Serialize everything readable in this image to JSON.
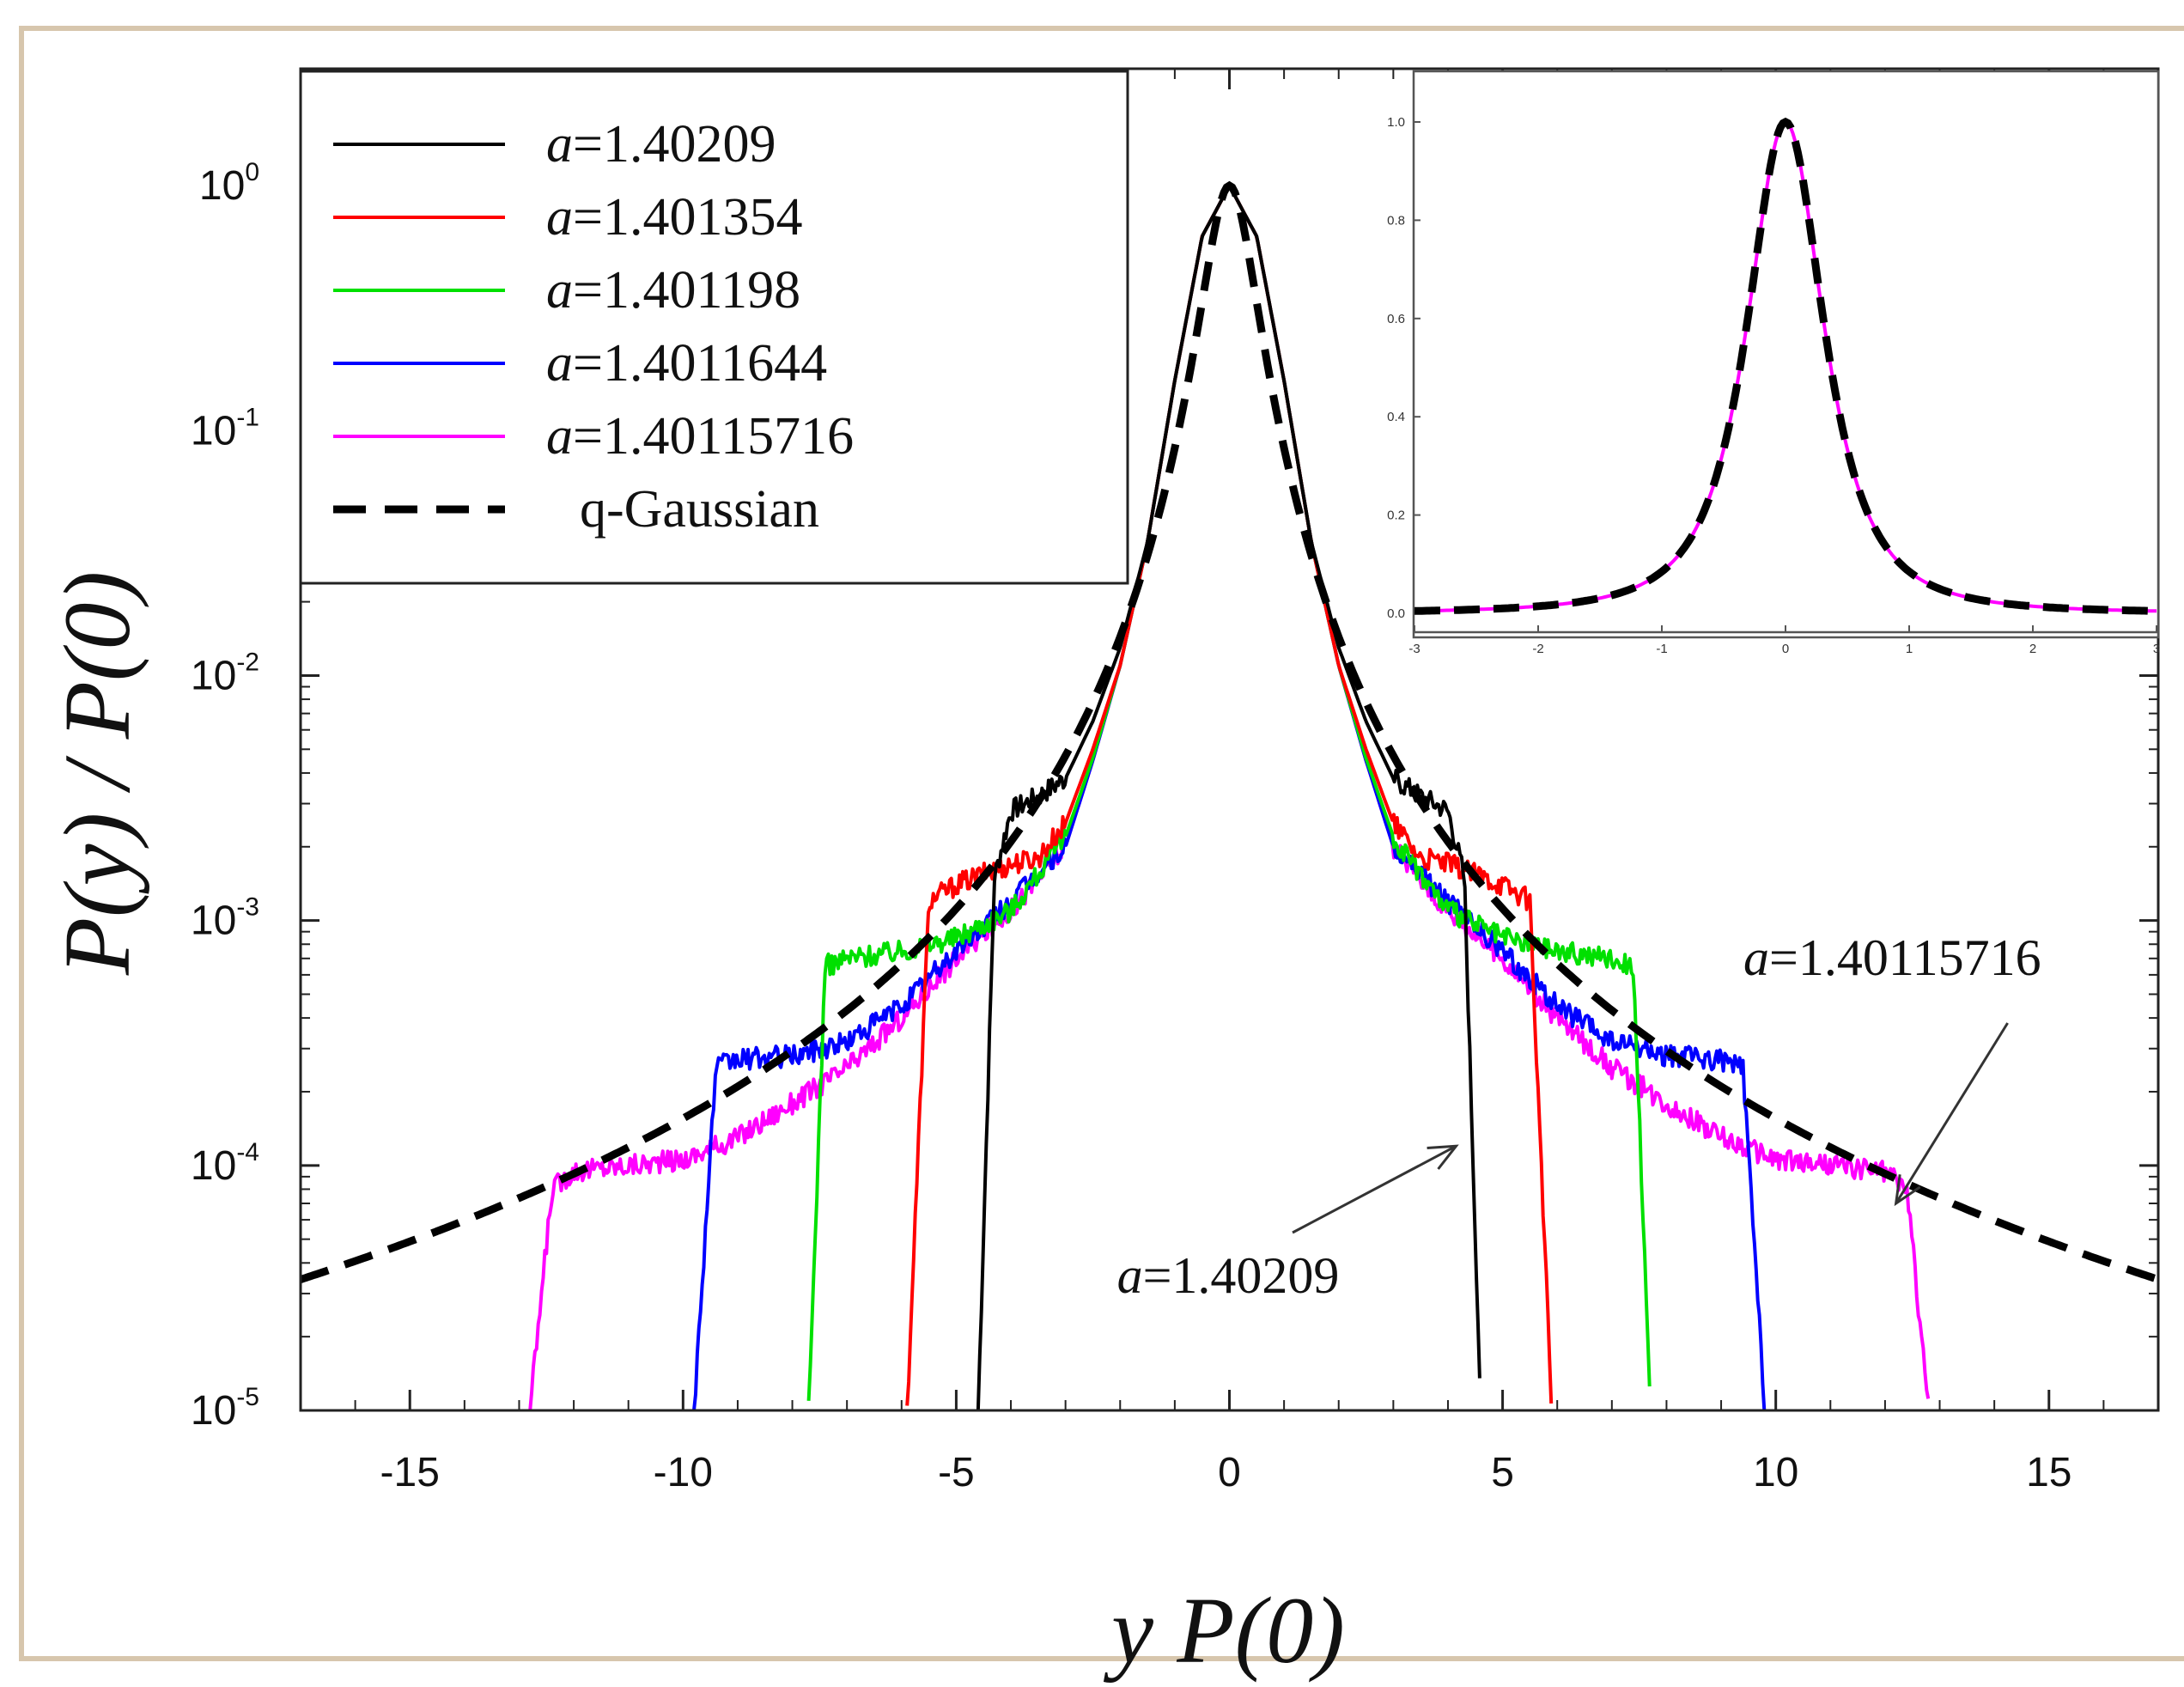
{
  "chart_data": [
    {
      "type": "line",
      "xlabel": "y P(0)",
      "ylabel": "P(y) / P(0)",
      "yscale": "log",
      "xlim": [
        -17,
        17
      ],
      "ylim": [
        1e-05,
        3
      ],
      "x_ticks": [
        "-15",
        "-10",
        "-5",
        "0",
        "5",
        "10",
        "15"
      ],
      "y_ticks": [
        {
          "base": "10",
          "exp": "0"
        },
        {
          "base": "10",
          "exp": "-1"
        },
        {
          "base": "10",
          "exp": "-2"
        },
        {
          "base": "10",
          "exp": "-3"
        },
        {
          "base": "10",
          "exp": "-4"
        },
        {
          "base": "10",
          "exp": "-5"
        }
      ],
      "legend_position": "top-left",
      "series": [
        {
          "name": "a=1.40209",
          "name_prefix": "a",
          "name_value": "=1.40209",
          "color": "#000000",
          "dash": false,
          "cutoff": 4.6,
          "points": [
            [
              0,
              1.0
            ],
            [
              0.5,
              0.62
            ],
            [
              1,
              0.16
            ],
            [
              1.5,
              0.035
            ],
            [
              2,
              0.013
            ],
            [
              2.5,
              0.0065
            ],
            [
              3,
              0.0038
            ],
            [
              3.5,
              0.0032
            ],
            [
              4,
              0.0028
            ],
            [
              4.3,
              0.0015
            ],
            [
              4.6,
              1e-05
            ]
          ]
        },
        {
          "name": "a=1.401354",
          "name_prefix": "a",
          "name_value": "=1.401354",
          "color": "#ff0000",
          "dash": false,
          "cutoff": 5.9,
          "points": [
            [
              0,
              1.0
            ],
            [
              0.5,
              0.62
            ],
            [
              1,
              0.16
            ],
            [
              1.5,
              0.035
            ],
            [
              2,
              0.011
            ],
            [
              2.5,
              0.005
            ],
            [
              3,
              0.0025
            ],
            [
              3.5,
              0.0018
            ],
            [
              4,
              0.0017
            ],
            [
              5,
              0.0014
            ],
            [
              5.5,
              0.0012
            ],
            [
              5.9,
              1e-05
            ]
          ]
        },
        {
          "name": "a=1.401198",
          "name_prefix": "a",
          "name_value": "=1.401198",
          "color": "#00e000",
          "dash": false,
          "cutoff": 7.7,
          "points": [
            [
              0,
              1.0
            ],
            [
              0.5,
              0.62
            ],
            [
              1,
              0.16
            ],
            [
              1.5,
              0.035
            ],
            [
              2,
              0.011
            ],
            [
              2.5,
              0.0046
            ],
            [
              3,
              0.0022
            ],
            [
              4,
              0.0011
            ],
            [
              5,
              0.00085
            ],
            [
              6,
              0.00075
            ],
            [
              7,
              0.0007
            ],
            [
              7.4,
              0.00065
            ],
            [
              7.7,
              1e-05
            ]
          ]
        },
        {
          "name": "a=1.4011644",
          "name_prefix": "a",
          "name_value": "=1.4011644",
          "color": "#0000ff",
          "dash": false,
          "cutoff": 9.8,
          "points": [
            [
              0,
              1.0
            ],
            [
              0.5,
              0.62
            ],
            [
              1,
              0.16
            ],
            [
              1.5,
              0.035
            ],
            [
              2,
              0.011
            ],
            [
              2.5,
              0.0045
            ],
            [
              3,
              0.002
            ],
            [
              4,
              0.0012
            ],
            [
              5,
              0.00075
            ],
            [
              6,
              0.00045
            ],
            [
              7,
              0.00032
            ],
            [
              8,
              0.00028
            ],
            [
              9,
              0.00027
            ],
            [
              9.4,
              0.00025
            ],
            [
              9.8,
              1e-05
            ]
          ]
        },
        {
          "name": "a=1.40115716",
          "name_prefix": "a",
          "name_value": "=1.40115716",
          "color": "#ff00ff",
          "dash": false,
          "cutoff": 12.8,
          "points": [
            [
              0,
              1.0
            ],
            [
              0.5,
              0.62
            ],
            [
              1,
              0.16
            ],
            [
              1.5,
              0.035
            ],
            [
              2,
              0.011
            ],
            [
              2.5,
              0.0045
            ],
            [
              3,
              0.002
            ],
            [
              4,
              0.0011
            ],
            [
              5,
              0.0007
            ],
            [
              6,
              0.0004
            ],
            [
              7,
              0.00025
            ],
            [
              8,
              0.00018
            ],
            [
              9,
              0.00013
            ],
            [
              10,
              0.000105
            ],
            [
              11,
              0.0001
            ],
            [
              12,
              9.5e-05
            ],
            [
              12.4,
              8e-05
            ],
            [
              12.8,
              1e-05
            ]
          ]
        },
        {
          "name": "q-Gaussian",
          "color": "#000000",
          "dash": true,
          "formula": "q-gaussian"
        }
      ],
      "annotations": [
        {
          "prefix": "a",
          "value": "=1.40209",
          "points_to": [
            4.15,
            0.00012
          ]
        },
        {
          "prefix": "a",
          "value": "=1.40115716",
          "points_to": [
            12.2,
            7e-05
          ]
        }
      ]
    },
    {
      "type": "line",
      "inset": true,
      "xlim": [
        -3,
        3
      ],
      "ylim": [
        0,
        1.0
      ],
      "x_ticks": [
        "-3",
        "-2",
        "-1",
        "0",
        "1",
        "2",
        "3"
      ],
      "y_ticks": [
        "0.0",
        "0.2",
        "0.4",
        "0.6",
        "0.8",
        "1.0"
      ],
      "series": [
        {
          "name": "a=1.40115716",
          "color": "#ff00ff",
          "dash": false
        },
        {
          "name": "q-Gaussian",
          "color": "#000000",
          "dash": true
        }
      ]
    }
  ]
}
